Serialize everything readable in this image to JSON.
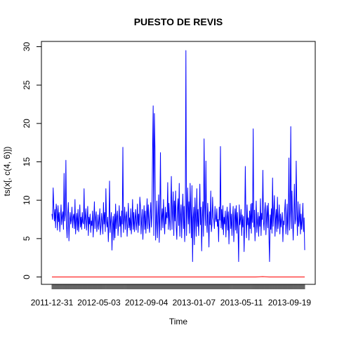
{
  "chart_data": {
    "type": "line",
    "title": "PUESTO DE REVIS",
    "xlabel": "Time",
    "ylabel": "ts(x[, c(4, 6)])",
    "ylim": [
      0,
      30
    ],
    "yticks": [
      0,
      5,
      10,
      15,
      20,
      25,
      30
    ],
    "xtick_labels": [
      "2011-12-31",
      "2012-05-03",
      "2012-09-04",
      "2013-01-07",
      "2013-05-11",
      "2013-09-19"
    ],
    "grid": false,
    "legend": "none",
    "series": [
      {
        "color": "#0000ff",
        "values": [
          8.2,
          7.5,
          11.6,
          9.1,
          7.3,
          8.8,
          6.4,
          9.5,
          8.7,
          6.1,
          9.3,
          7.2,
          8.4,
          5.9,
          7.6,
          9.4,
          6.8,
          7.9,
          8.5,
          6.2,
          13.5,
          7.3,
          8.1,
          15.2,
          6.7,
          5.1,
          8.3,
          9.7,
          4.7,
          7.2,
          8.4,
          6.9,
          7.5,
          9.1,
          6.4,
          7.8,
          8.2,
          6.3,
          10.1,
          5.6,
          7.4,
          8.3,
          6.1,
          8.8,
          5.9,
          7.3,
          9.4,
          6.5,
          7.8,
          6.2,
          8.4,
          7.1,
          6.9,
          11.5,
          6.3,
          7.8,
          8.9,
          6.1,
          7.5,
          9.2,
          5.4,
          7.8,
          6.9,
          8.2,
          5.8,
          7.3,
          6.7,
          8.6,
          5.2,
          7.4,
          9.8,
          6.3,
          7.7,
          8.5,
          5.9,
          6.8,
          8.1,
          6.2,
          7.3,
          8.9,
          5.5,
          6.7,
          8.3,
          7.1,
          5.6,
          9.7,
          6.9,
          8.4,
          5.9,
          11.5,
          7.2,
          6.5,
          7.8,
          4.6,
          6.9,
          12.5,
          5.8,
          7.2,
          8.4,
          3.5,
          6.7,
          7.9,
          4.8,
          8.2,
          5.1,
          9.5,
          6.3,
          7.8,
          8.6,
          5.4,
          7.1,
          9.3,
          6.6,
          7.9,
          5.2,
          8.6,
          6.9,
          16.9,
          5.8,
          7.4,
          9.1,
          6.2,
          7.8,
          8.5,
          5.3,
          7.1,
          9.6,
          6.4,
          7.7,
          6.1,
          8.9,
          5.6,
          7.3,
          10.1,
          6.2,
          8.4,
          5.9,
          7.6,
          8.8,
          6.1,
          7.2,
          9.5,
          5.8,
          8.2,
          6.7,
          10.4,
          9.2,
          5.6,
          7.5,
          8.8,
          4.9,
          7.4,
          9.3,
          6.2,
          8.6,
          5.7,
          7.9,
          10.2,
          6.3,
          9.4,
          7.1,
          5.8,
          8.3,
          9.7,
          6.5,
          8.1,
          16.4,
          22.3,
          5.4,
          21.3,
          16.5,
          4.8,
          7.2,
          9.9,
          5.1,
          7.6,
          10.7,
          4.5,
          8.2,
          16.2,
          6.1,
          7.6,
          8.9,
          6.4,
          10.1,
          7.3,
          5.6,
          9.1,
          6.9,
          8.4,
          7.7,
          12.3,
          6.2,
          9.6,
          7.5,
          6.1,
          9.4,
          13.1,
          6.2,
          8.8,
          11.1,
          5.4,
          9.9,
          7.3,
          11.2,
          6.5,
          4.9,
          8.8,
          10.2,
          6.7,
          12.2,
          5.3,
          7.9,
          9.4,
          5.1,
          8.5,
          10.8,
          6.3,
          9.2,
          4.6,
          7.8,
          29.5,
          5.4,
          8.6,
          11.6,
          6.9,
          9.8,
          5.7,
          12.2,
          8.4,
          5.1,
          11.9,
          2.0,
          7.6,
          9.1,
          4.2,
          10.3,
          7.7,
          5.3,
          11.5,
          6.6,
          8.8,
          5.4,
          8.1,
          12.1,
          6.8,
          9.1,
          3.4,
          7.6,
          9.8,
          5.3,
          18.0,
          9.4,
          6.7,
          15.1,
          7.5,
          5.8,
          9.6,
          7.4,
          3.9,
          8.5,
          6.8,
          11.2,
          5.9,
          6.8,
          10.4,
          7.8,
          7.4,
          6.3,
          9.2,
          7.6,
          7.2,
          8.9,
          6.6,
          7.5,
          4.6,
          9.1,
          7.4,
          17.0,
          6.4,
          8.8,
          6.2,
          9.3,
          5.5,
          7.8,
          6.9,
          8.6,
          5.2,
          7.4,
          9.1,
          6.1,
          8.5,
          4.3,
          7.7,
          9.6,
          6.3,
          8.2,
          5.4,
          7.8,
          9.2,
          4.6,
          7.3,
          8.9,
          6.1,
          9.3,
          5.7,
          8.4,
          6.2,
          2.0,
          9.4,
          6.8,
          7.5,
          8.8,
          5.4,
          8.1,
          6.5,
          7.9,
          3.3,
          7.2,
          14.4,
          7.6,
          5.1,
          9.4,
          6.8,
          7.7,
          4.8,
          8.6,
          6.3,
          9.5,
          5.7,
          9.6,
          7.1,
          19.3,
          6.5,
          8.7,
          4.7,
          7.4,
          9.9,
          5.8,
          7.2,
          8.4,
          5.3,
          7.9,
          6.6,
          10.2,
          5.4,
          8.3,
          7.5,
          13.9,
          7.2,
          6.1,
          8.6,
          9.7,
          5.5,
          7.8,
          9.3,
          6.4,
          9.6,
          5.4,
          2.0,
          8.1,
          6.2,
          8.9,
          5.7,
          12.9,
          6.6,
          8.5,
          10.6,
          5.3,
          7.6,
          8.8,
          5.9,
          10.4,
          6.3,
          7.5,
          9.4,
          5.6,
          8.2,
          6.5,
          7.4,
          8.4,
          4.6,
          7.3,
          6.8,
          8.7,
          10.1,
          5.6,
          6.9,
          9.5,
          5.5,
          7.8,
          15.5,
          6.1,
          8.4,
          19.6,
          6.3,
          11.2,
          7.5,
          4.8,
          8.1,
          12.1,
          6.9,
          7.5,
          15.1,
          8.6,
          5.4,
          9.8,
          6.6,
          7.3,
          9.5,
          5.6,
          8.2,
          6.2,
          7.4,
          9.6,
          5.9,
          7.7,
          3.5
        ]
      },
      {
        "color": "#ff0000",
        "values": [
          0,
          0,
          0,
          0,
          0,
          0,
          0,
          0,
          0,
          0,
          0,
          0,
          0,
          0,
          0,
          0,
          0,
          0,
          0,
          0,
          0,
          0,
          0,
          0,
          0,
          0,
          0,
          0,
          0,
          0,
          0.05,
          0,
          0,
          0,
          0,
          0,
          0
        ]
      }
    ]
  }
}
